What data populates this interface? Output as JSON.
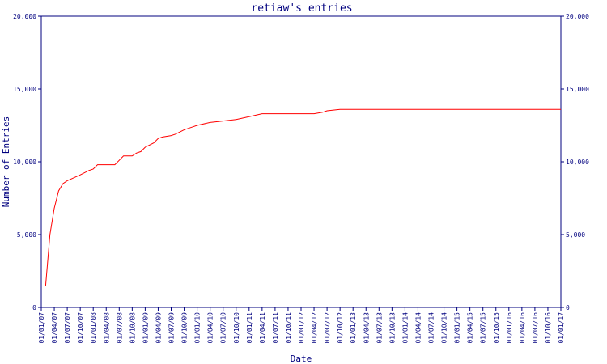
{
  "chart_data": {
    "type": "line",
    "title": "retiaw's entries",
    "xlabel": "Date",
    "ylabel": "Number of Entries",
    "ylim": [
      0,
      20000
    ],
    "y_ticks": [
      "0",
      "5,000",
      "10,000",
      "15,000",
      "20,000"
    ],
    "y_tick_values": [
      0,
      5000,
      10000,
      15000,
      20000
    ],
    "x_ticks": [
      "01/01/07",
      "01/04/07",
      "01/07/07",
      "01/10/07",
      "01/01/08",
      "01/04/08",
      "01/07/08",
      "01/10/08",
      "01/01/09",
      "01/04/09",
      "01/07/09",
      "01/10/09",
      "01/01/10",
      "01/04/10",
      "01/07/10",
      "01/10/10",
      "01/01/11",
      "01/04/11",
      "01/07/11",
      "01/10/11",
      "01/01/12",
      "01/04/12",
      "01/07/12",
      "01/10/12",
      "01/01/13",
      "01/04/13",
      "01/07/13",
      "01/10/13",
      "01/01/14",
      "01/04/14",
      "01/07/14",
      "01/10/14",
      "01/01/15",
      "01/04/15",
      "01/07/15",
      "01/10/15",
      "01/01/16",
      "01/04/16",
      "01/07/16",
      "01/10/16",
      "01/01/17"
    ],
    "grid": false,
    "colors": {
      "line": "#ff0000",
      "axis": "#00007f",
      "text": "#00007f"
    },
    "series": [
      {
        "x": [
          "01/02/07",
          "01/03/07",
          "01/04/07",
          "01/05/07",
          "01/06/07",
          "01/07/07",
          "01/10/07",
          "01/12/07",
          "01/01/08",
          "01/02/08",
          "01/04/08",
          "01/06/08",
          "01/07/08",
          "01/08/08",
          "01/09/08",
          "01/10/08",
          "01/11/08",
          "01/12/08",
          "01/01/09",
          "01/03/09",
          "01/04/09",
          "01/05/09",
          "01/07/09",
          "01/08/09",
          "01/10/09",
          "01/12/09",
          "01/01/10",
          "01/04/10",
          "01/07/10",
          "01/10/10",
          "01/01/11",
          "01/04/11",
          "01/07/11",
          "01/10/11",
          "01/01/12",
          "01/04/12",
          "01/06/12",
          "01/07/12",
          "01/10/12",
          "01/01/13",
          "01/01/14",
          "01/01/15",
          "01/01/16",
          "01/01/17"
        ],
        "y": [
          1500,
          5000,
          6800,
          8000,
          8500,
          8700,
          9100,
          9400,
          9500,
          9800,
          9800,
          9800,
          10100,
          10400,
          10400,
          10400,
          10600,
          10700,
          11000,
          11300,
          11600,
          11700,
          11800,
          11900,
          12200,
          12400,
          12500,
          12700,
          12800,
          12900,
          13100,
          13300,
          13300,
          13300,
          13300,
          13300,
          13400,
          13500,
          13600,
          13600,
          13600,
          13600,
          13600,
          13600
        ]
      }
    ]
  }
}
